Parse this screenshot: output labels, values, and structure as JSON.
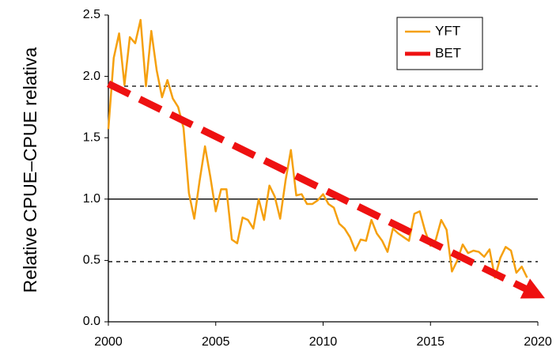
{
  "chart_data": {
    "type": "line",
    "y_label": "Relative CPUE–CPUE relativa",
    "xlim": [
      2000,
      2020
    ],
    "xticks": [
      2000,
      2005,
      2010,
      2015,
      2020
    ],
    "ylim": [
      0,
      2.5
    ],
    "yticks": [
      {
        "value": 0,
        "label": "0.0"
      },
      0.5,
      {
        "value": 1,
        "label": "1.0"
      },
      1.5,
      {
        "value": 2,
        "label": "2.0"
      },
      2.5
    ],
    "hlines": [
      {
        "value": 1.92,
        "style": "dashed"
      },
      {
        "value": 1.0,
        "style": "solid"
      },
      {
        "value": 0.49,
        "style": "dashed"
      }
    ],
    "legend": "upper right",
    "series": [
      {
        "name": "YFT",
        "color": "#f5a00f",
        "style": "solid",
        "x": [
          2000,
          2000.25,
          2000.5,
          2000.75,
          2001,
          2001.25,
          2001.5,
          2001.75,
          2002,
          2002.25,
          2002.5,
          2002.75,
          2003,
          2003.25,
          2003.5,
          2003.75,
          2004,
          2004.25,
          2004.5,
          2004.75,
          2005,
          2005.25,
          2005.5,
          2005.75,
          2006,
          2006.25,
          2006.5,
          2006.75,
          2007,
          2007.25,
          2007.5,
          2007.75,
          2008,
          2008.25,
          2008.5,
          2008.75,
          2009,
          2009.25,
          2009.5,
          2009.75,
          2010,
          2010.25,
          2010.5,
          2010.75,
          2011,
          2011.25,
          2011.5,
          2011.75,
          2012,
          2012.25,
          2012.5,
          2012.75,
          2013,
          2013.25,
          2013.5,
          2013.75,
          2014,
          2014.25,
          2014.5,
          2014.75,
          2015,
          2015.25,
          2015.5,
          2015.75,
          2016,
          2016.25,
          2016.5,
          2016.75,
          2017,
          2017.25,
          2017.5,
          2017.75,
          2018,
          2018.25,
          2018.5,
          2018.75,
          2019,
          2019.25,
          2019.5
        ],
        "values": [
          1.57,
          2.15,
          2.35,
          1.93,
          2.32,
          2.27,
          2.46,
          1.92,
          2.37,
          2.05,
          1.83,
          1.97,
          1.82,
          1.75,
          1.58,
          1.05,
          0.84,
          1.15,
          1.43,
          1.18,
          0.9,
          1.08,
          1.08,
          0.67,
          0.64,
          0.85,
          0.83,
          0.76,
          1.0,
          0.83,
          1.11,
          1.02,
          0.84,
          1.15,
          1.4,
          1.03,
          1.04,
          0.96,
          0.96,
          0.99,
          1.04,
          0.96,
          0.93,
          0.8,
          0.76,
          0.69,
          0.58,
          0.67,
          0.66,
          0.83,
          0.72,
          0.66,
          0.57,
          0.76,
          0.72,
          0.69,
          0.66,
          0.88,
          0.9,
          0.74,
          0.62,
          0.67,
          0.83,
          0.75,
          0.41,
          0.5,
          0.63,
          0.56,
          0.58,
          0.57,
          0.53,
          0.59,
          0.36,
          0.52,
          0.61,
          0.58,
          0.4,
          0.45,
          0.36
        ]
      },
      {
        "name": "BET",
        "color": "#ee1111",
        "style": "arrow",
        "x": [
          2000,
          2020
        ],
        "values": [
          1.94,
          0.22
        ]
      }
    ]
  }
}
